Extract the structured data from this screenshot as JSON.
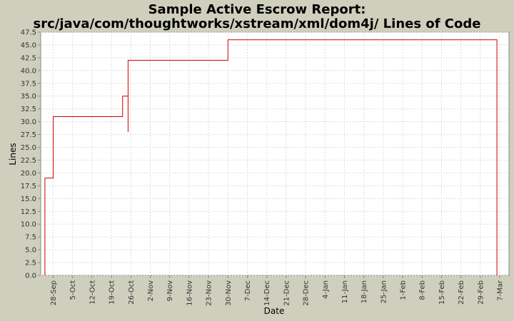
{
  "chart_data": {
    "type": "line",
    "title": "Sample Active Escrow Report:",
    "subtitle": "src/java/com/thoughtworks/xstream/xml/dom4j/ Lines of Code",
    "xlabel": "Date",
    "ylabel": "Lines",
    "ylim": [
      0,
      47.5
    ],
    "y_ticks": [
      "0.0",
      "2.5",
      "5.0",
      "7.5",
      "10.0",
      "12.5",
      "15.0",
      "17.5",
      "20.0",
      "22.5",
      "25.0",
      "27.5",
      "30.0",
      "32.5",
      "35.0",
      "37.5",
      "40.0",
      "42.5",
      "45.0",
      "47.5"
    ],
    "x_ticks": [
      "28-Sep",
      "5-Oct",
      "12-Oct",
      "19-Oct",
      "26-Oct",
      "2-Nov",
      "9-Nov",
      "16-Nov",
      "23-Nov",
      "30-Nov",
      "7-Dec",
      "14-Dec",
      "21-Dec",
      "28-Dec",
      "4-Jan",
      "11-Jan",
      "18-Jan",
      "25-Jan",
      "1-Feb",
      "8-Feb",
      "15-Feb",
      "22-Feb",
      "29-Feb",
      "7-Mar"
    ],
    "grid": true,
    "line_color": "#cc0000",
    "series": [
      {
        "step": true,
        "points": [
          {
            "x": "2003-09-25",
            "y": 0
          },
          {
            "x": "2003-09-25",
            "y": 19
          },
          {
            "x": "2003-09-28",
            "y": 19
          },
          {
            "x": "2003-09-28",
            "y": 31
          },
          {
            "x": "2003-10-23",
            "y": 31
          },
          {
            "x": "2003-10-23",
            "y": 35
          },
          {
            "x": "2003-10-25",
            "y": 35
          },
          {
            "x": "2003-10-25",
            "y": 28
          },
          {
            "x": "2003-10-25",
            "y": 42
          },
          {
            "x": "2003-11-30",
            "y": 42
          },
          {
            "x": "2003-11-30",
            "y": 46
          },
          {
            "x": "2004-03-06",
            "y": 46
          },
          {
            "x": "2004-03-06",
            "y": 0
          }
        ]
      }
    ]
  }
}
